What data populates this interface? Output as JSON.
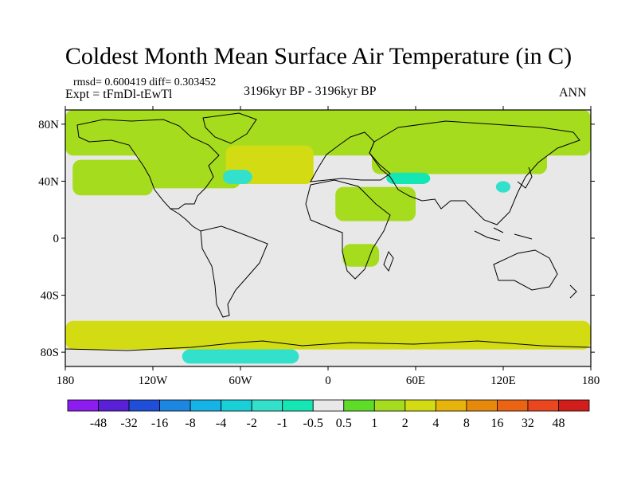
{
  "chart_data": {
    "type": "heatmap",
    "title": "Coldest Month Mean Surface Air Temperature (in C)",
    "stats_text": "rmsd= 0.600419 diff= 0.303452",
    "experiment_text": "Expt = tFmDl-tEwTl",
    "subtitle": "3196kyr BP - 3196kyr BP",
    "season": "ANN",
    "projection": "cylindrical equidistant",
    "xlim": [
      -180,
      180
    ],
    "ylim": [
      -90,
      90
    ],
    "x_ticks": [
      {
        "value": -180,
        "label": "180"
      },
      {
        "value": -120,
        "label": "120W"
      },
      {
        "value": -60,
        "label": "60W"
      },
      {
        "value": 0,
        "label": "0"
      },
      {
        "value": 60,
        "label": "60E"
      },
      {
        "value": 120,
        "label": "120E"
      },
      {
        "value": 180,
        "label": "180"
      }
    ],
    "y_ticks": [
      {
        "value": 80,
        "label": "80N"
      },
      {
        "value": 40,
        "label": "40N"
      },
      {
        "value": 0,
        "label": "0"
      },
      {
        "value": -40,
        "label": "40S"
      },
      {
        "value": -80,
        "label": "80S"
      }
    ],
    "colorbar": {
      "levels": [
        "-48",
        "-32",
        "-16",
        "-8",
        "-4",
        "-2",
        "-1",
        "-0.5",
        "0.5",
        "1",
        "2",
        "4",
        "8",
        "16",
        "32",
        "48"
      ],
      "colors": [
        "#8c1cf0",
        "#5a20d8",
        "#1f4fd8",
        "#1d86e0",
        "#16b3e6",
        "#19cfd8",
        "#33e0cc",
        "#14e6b4",
        "#e8e8e8",
        "#5edc28",
        "#a6dc1e",
        "#d3dc12",
        "#e6b40a",
        "#e68a0c",
        "#ea6414",
        "#ea4620",
        "#d21e1a"
      ]
    },
    "regions": [
      {
        "name": "arctic-band",
        "lon": [
          -180,
          180
        ],
        "lat": [
          58,
          90
        ],
        "value": 1.5
      },
      {
        "name": "north-pacific",
        "lon": [
          -175,
          -120
        ],
        "lat": [
          30,
          55
        ],
        "value": 1.2
      },
      {
        "name": "north-america",
        "lon": [
          -130,
          -60
        ],
        "lat": [
          35,
          70
        ],
        "value": 1.5
      },
      {
        "name": "north-atlantic",
        "lon": [
          -70,
          -10
        ],
        "lat": [
          38,
          65
        ],
        "value": 2.5
      },
      {
        "name": "labrador-cool",
        "lon": [
          -72,
          -52
        ],
        "lat": [
          38,
          48
        ],
        "value": -1.5
      },
      {
        "name": "eurasia-north",
        "lon": [
          30,
          150
        ],
        "lat": [
          45,
          75
        ],
        "value": 1.8
      },
      {
        "name": "north-africa",
        "lon": [
          5,
          60
        ],
        "lat": [
          12,
          36
        ],
        "value": 1.0
      },
      {
        "name": "central-asia-cool",
        "lon": [
          40,
          70
        ],
        "lat": [
          38,
          46
        ],
        "value": -1.0
      },
      {
        "name": "east-asia-cool",
        "lon": [
          115,
          125
        ],
        "lat": [
          32,
          40
        ],
        "value": -1.5
      },
      {
        "name": "south-africa",
        "lon": [
          10,
          35
        ],
        "lat": [
          -20,
          -4
        ],
        "value": 1.0
      },
      {
        "name": "southern-ocean",
        "lon": [
          -180,
          180
        ],
        "lat": [
          -78,
          -58
        ],
        "value": 2.5
      },
      {
        "name": "antarctic-cool",
        "lon": [
          -100,
          -20
        ],
        "lat": [
          -88,
          -78
        ],
        "value": -1.5
      }
    ]
  }
}
